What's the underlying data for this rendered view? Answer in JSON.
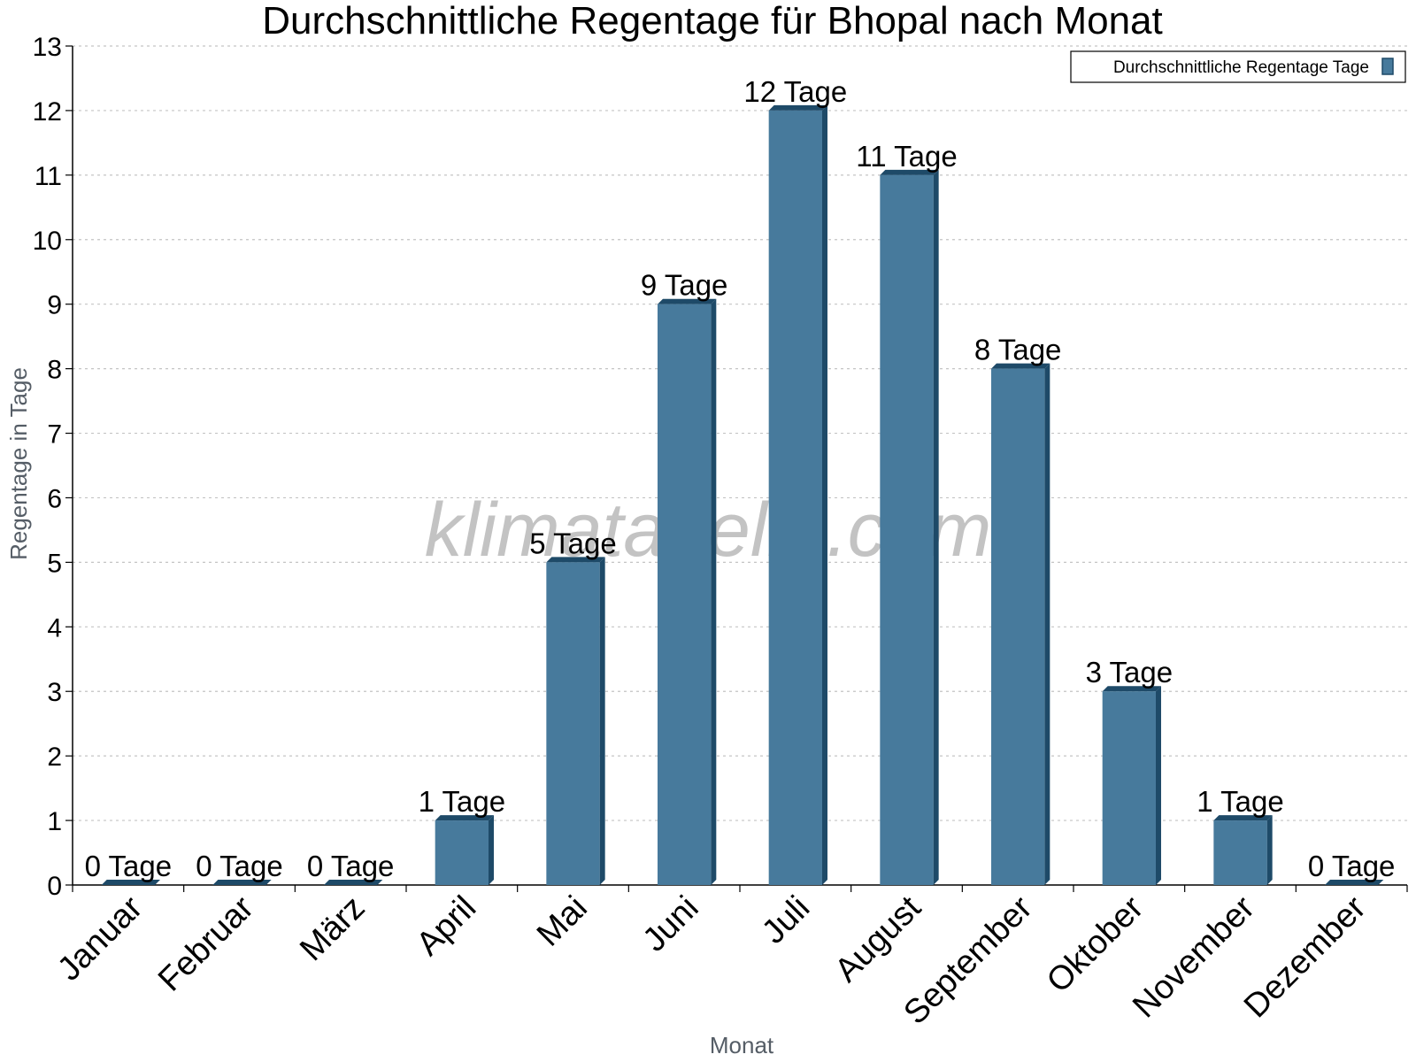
{
  "watermark": "klimatabelle.com",
  "chart_data": {
    "type": "bar",
    "title": "Durchschnittliche Regentage für Bhopal nach Monat",
    "xlabel": "Monat",
    "ylabel": "Regentage in Tage",
    "ylim": [
      0,
      13
    ],
    "yticks": [
      "0",
      "1",
      "2",
      "3",
      "4",
      "5",
      "6",
      "7",
      "8",
      "9",
      "10",
      "11",
      "12",
      "13"
    ],
    "grid": "horizontal-dotted",
    "legend_position": "top-right",
    "categories": [
      "Januar",
      "Februar",
      "März",
      "April",
      "Mai",
      "Juni",
      "Juli",
      "August",
      "September",
      "Oktober",
      "November",
      "Dezember"
    ],
    "series": [
      {
        "name": "Durchschnittliche Regentage Tage",
        "color": "#477a9c",
        "values": [
          0,
          0,
          0,
          1,
          5,
          9,
          12,
          11,
          8,
          3,
          1,
          0
        ],
        "data_labels": [
          "0 Tage",
          "0 Tage",
          "0 Tage",
          "1 Tage",
          "5 Tage",
          "9 Tage",
          "12 Tage",
          "11 Tage",
          "8 Tage",
          "3 Tage",
          "1 Tage",
          "0 Tage"
        ]
      }
    ]
  }
}
